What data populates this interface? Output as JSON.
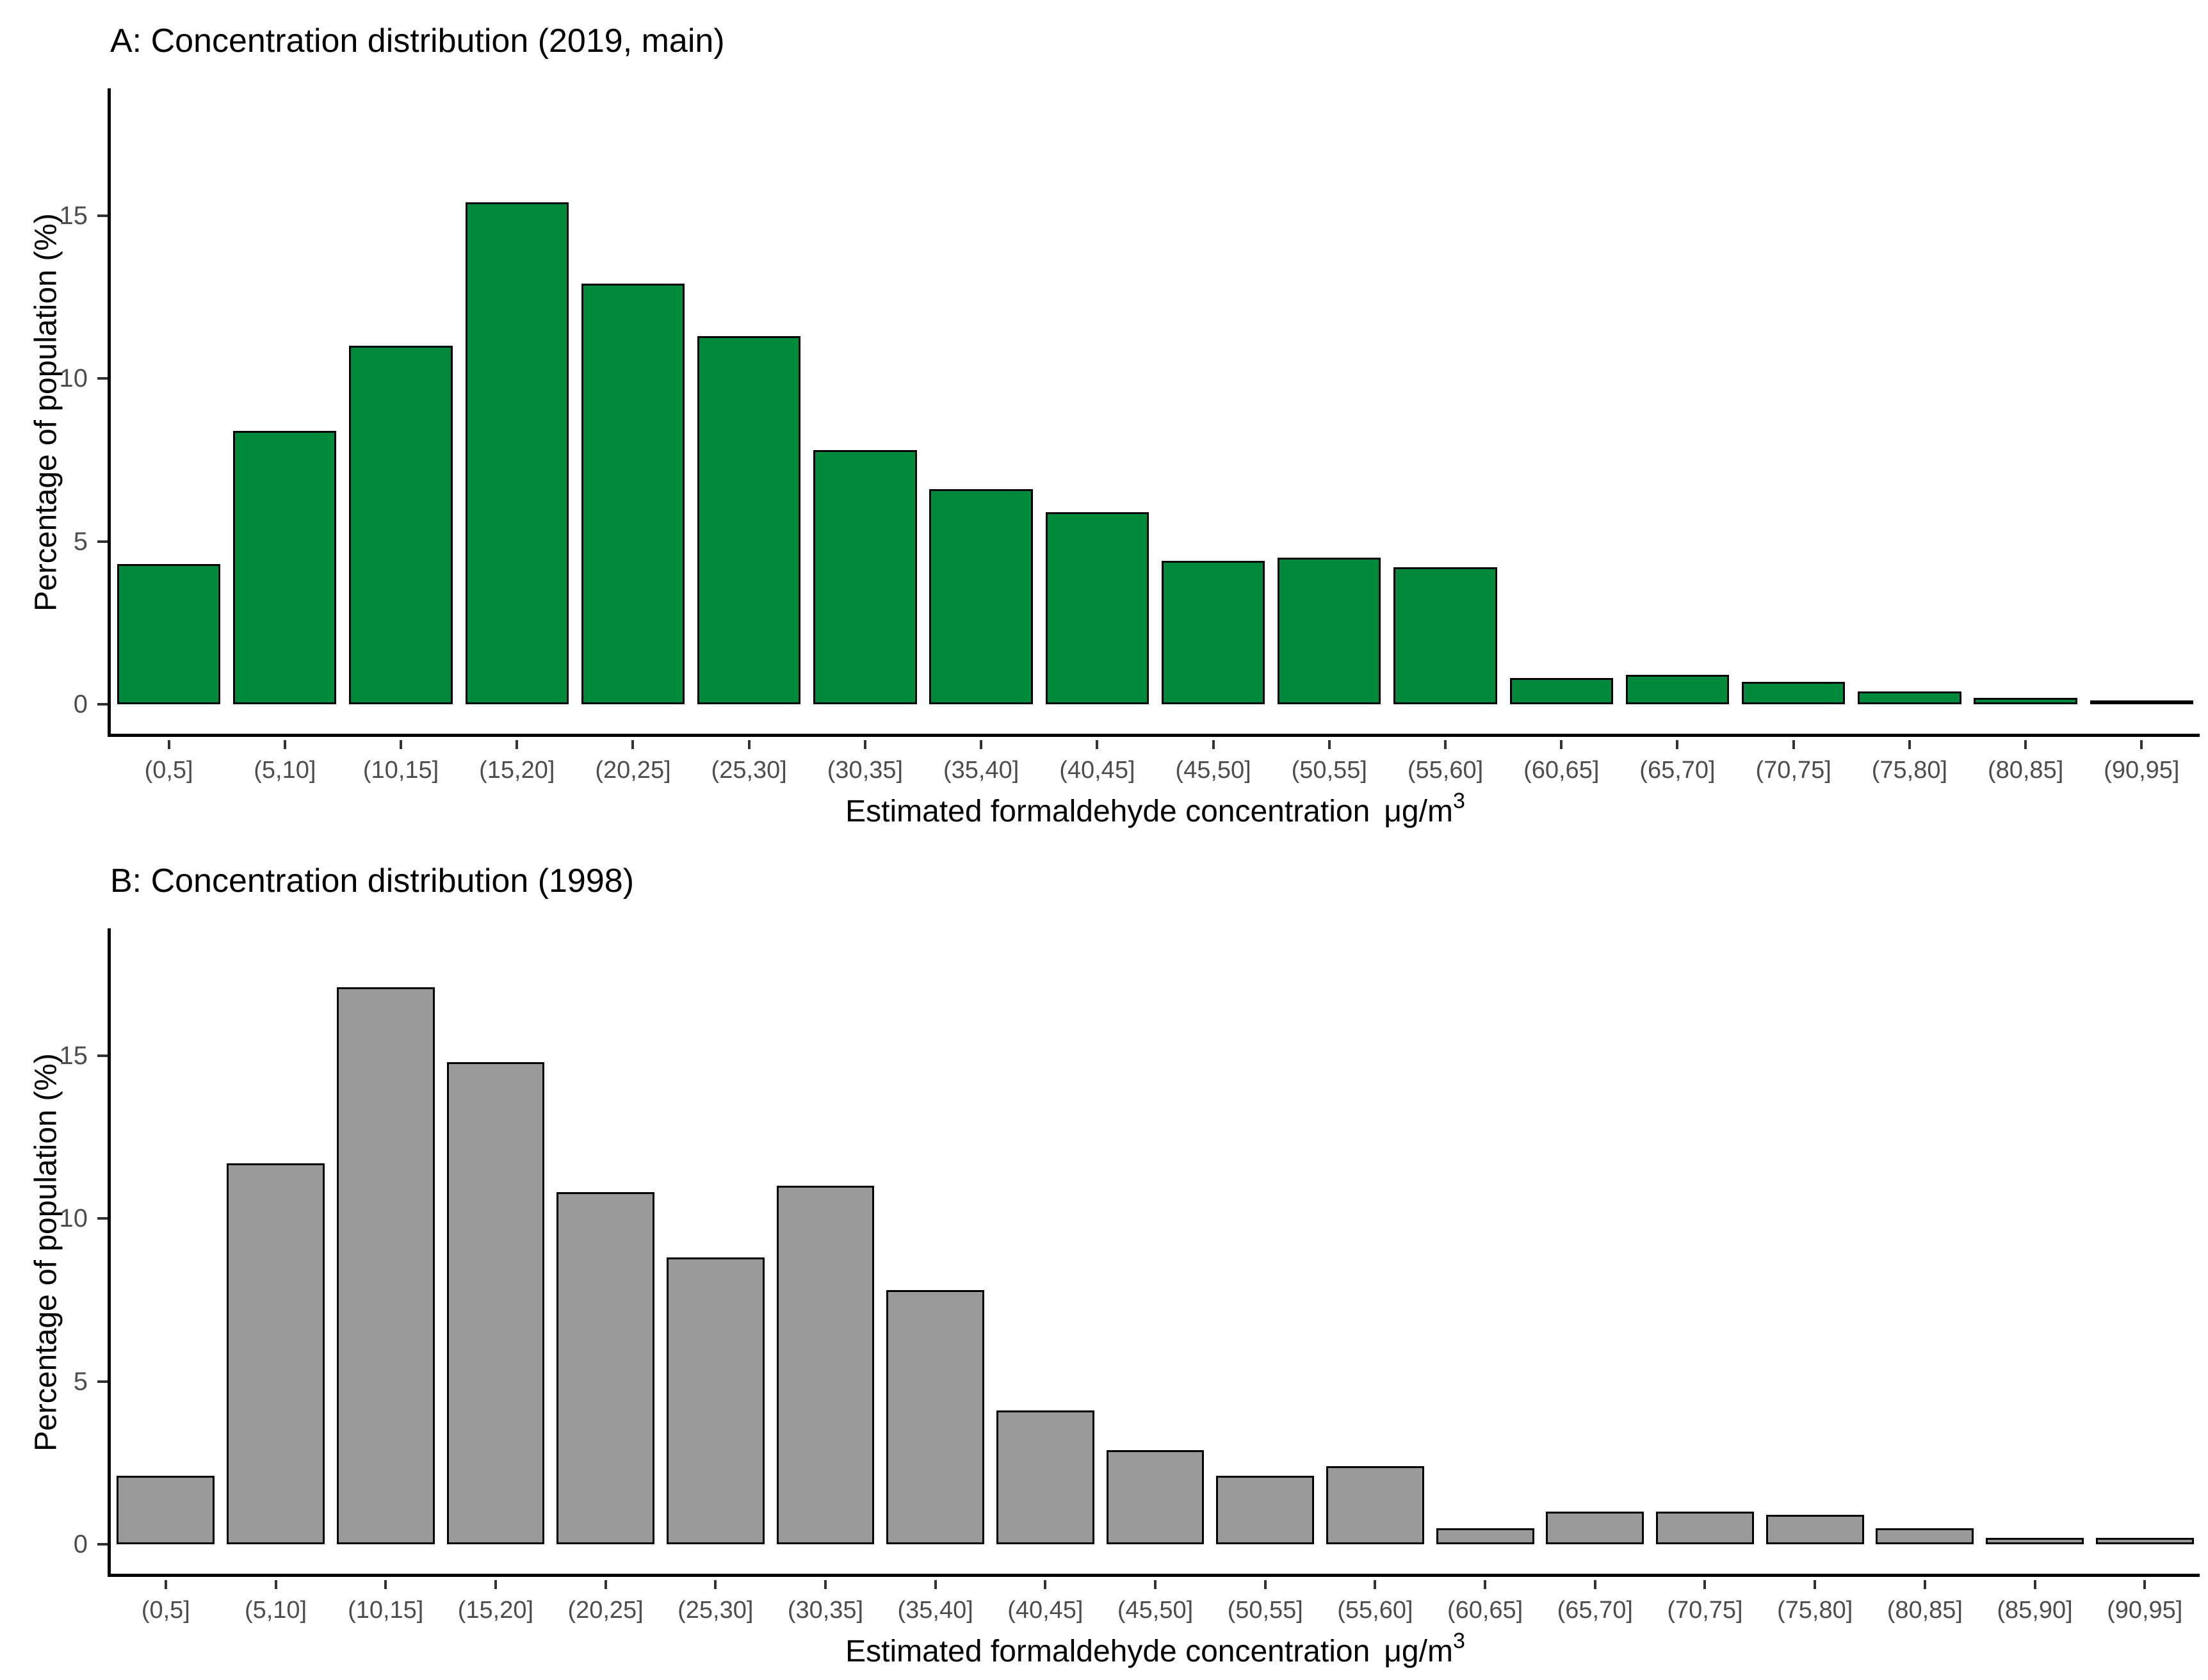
{
  "figure": {
    "background": "#ffffff",
    "spine_color": "#000000",
    "tick_text_color": "#4d4d4d"
  },
  "chart_data": [
    {
      "type": "bar",
      "title": "A: Concentration distribution (2019, main)",
      "ylabel": "Percentage of population (%)",
      "xlabel": "Estimated formaldehyde concentration",
      "xlabel_unit": "μg/m",
      "xlabel_unit_sup": "3",
      "bar_color": "#028a3c",
      "bar_border_color": "#000000",
      "categories": [
        "(0,5]",
        "(5,10]",
        "(10,15]",
        "(15,20]",
        "(20,25]",
        "(25,30]",
        "(30,35]",
        "(35,40]",
        "(40,45]",
        "(45,50]",
        "(50,55]",
        "(55,60]",
        "(60,65]",
        "(65,70]",
        "(70,75]",
        "(75,80]",
        "(80,85]",
        "(90,95]"
      ],
      "values": [
        4.3,
        8.4,
        11.0,
        15.4,
        12.9,
        11.3,
        7.8,
        6.6,
        5.9,
        4.4,
        4.5,
        4.2,
        0.8,
        0.9,
        0.7,
        0.4,
        0.2,
        0.1
      ],
      "y_ticks": [
        0,
        5,
        10,
        15
      ],
      "y_range": [
        -0.9,
        18.9
      ],
      "grid": false,
      "legend": "none"
    },
    {
      "type": "bar",
      "title": "B: Concentration distribution (1998)",
      "ylabel": "Percentage of population (%)",
      "xlabel": "Estimated formaldehyde concentration",
      "xlabel_unit": "μg/m",
      "xlabel_unit_sup": "3",
      "bar_color": "#9a9a9a",
      "bar_border_color": "#000000",
      "categories": [
        "(0,5]",
        "(5,10]",
        "(10,15]",
        "(15,20]",
        "(20,25]",
        "(25,30]",
        "(30,35]",
        "(35,40]",
        "(40,45]",
        "(45,50]",
        "(50,55]",
        "(55,60]",
        "(60,65]",
        "(65,70]",
        "(70,75]",
        "(75,80]",
        "(80,85]",
        "(85,90]",
        "(90,95]"
      ],
      "values": [
        2.1,
        11.7,
        17.1,
        14.8,
        10.8,
        8.8,
        11.0,
        7.8,
        4.1,
        2.9,
        2.1,
        2.4,
        0.5,
        1.0,
        1.0,
        0.9,
        0.5,
        0.2,
        0.2
      ],
      "y_ticks": [
        0,
        5,
        10,
        15
      ],
      "y_range": [
        -0.9,
        18.9
      ],
      "grid": false,
      "legend": "none"
    }
  ]
}
